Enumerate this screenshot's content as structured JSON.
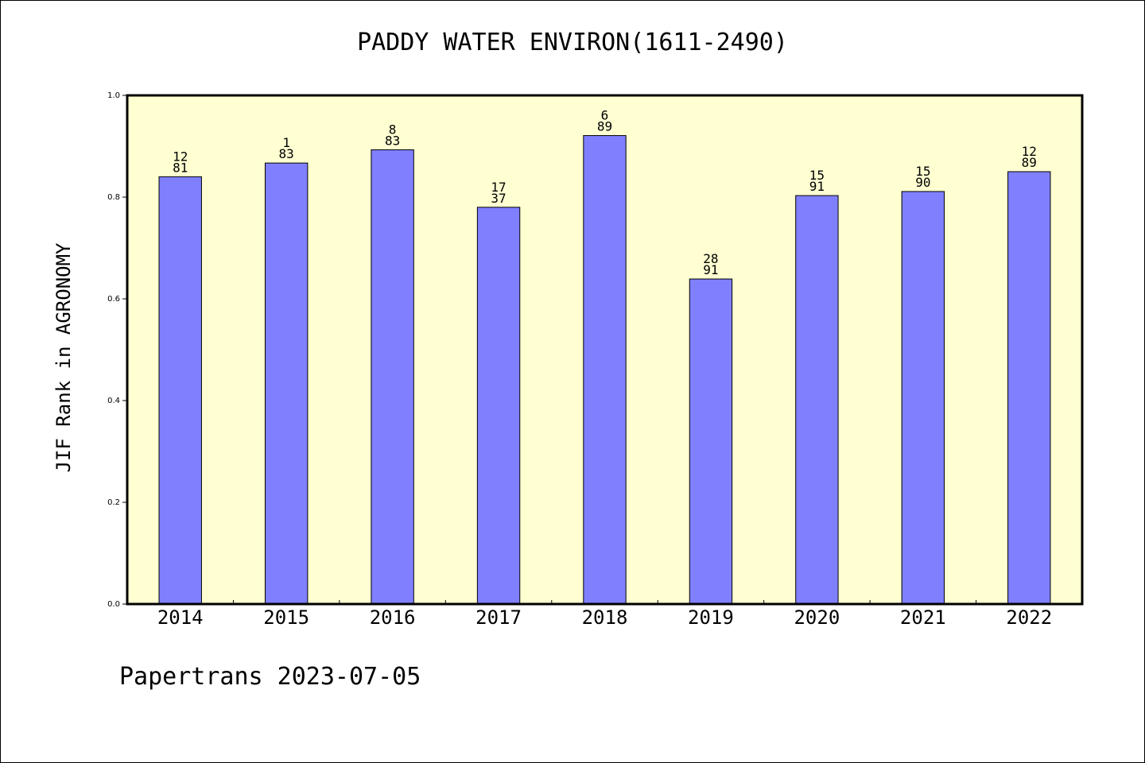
{
  "footer": "Papertrans 2023-07-05",
  "colors": {
    "plot_background": "#ffffd2",
    "bar_fill": "#8080ff",
    "axis": "#000000"
  },
  "chart_data": {
    "type": "bar",
    "title": "PADDY WATER ENVIRON(1611-2490)",
    "xlabel": "",
    "ylabel": "JIF Rank in AGRONOMY",
    "ylim": [
      0,
      1.0
    ],
    "yticks": [
      "0.0",
      "0.2",
      "0.4",
      "0.6",
      "0.8",
      "1.0"
    ],
    "grid": false,
    "categories": [
      "2014",
      "2015",
      "2016",
      "2017",
      "2018",
      "2019",
      "2020",
      "2021",
      "2022"
    ],
    "values": [
      0.84,
      0.867,
      0.893,
      0.78,
      0.921,
      0.639,
      0.803,
      0.811,
      0.85
    ],
    "labels": [
      [
        "12",
        "81"
      ],
      [
        "1",
        "83"
      ],
      [
        "8",
        "83"
      ],
      [
        "17",
        "37"
      ],
      [
        "6",
        "89"
      ],
      [
        "28",
        "91"
      ],
      [
        "15",
        "91"
      ],
      [
        "15",
        "90"
      ],
      [
        "12",
        "89"
      ]
    ]
  }
}
